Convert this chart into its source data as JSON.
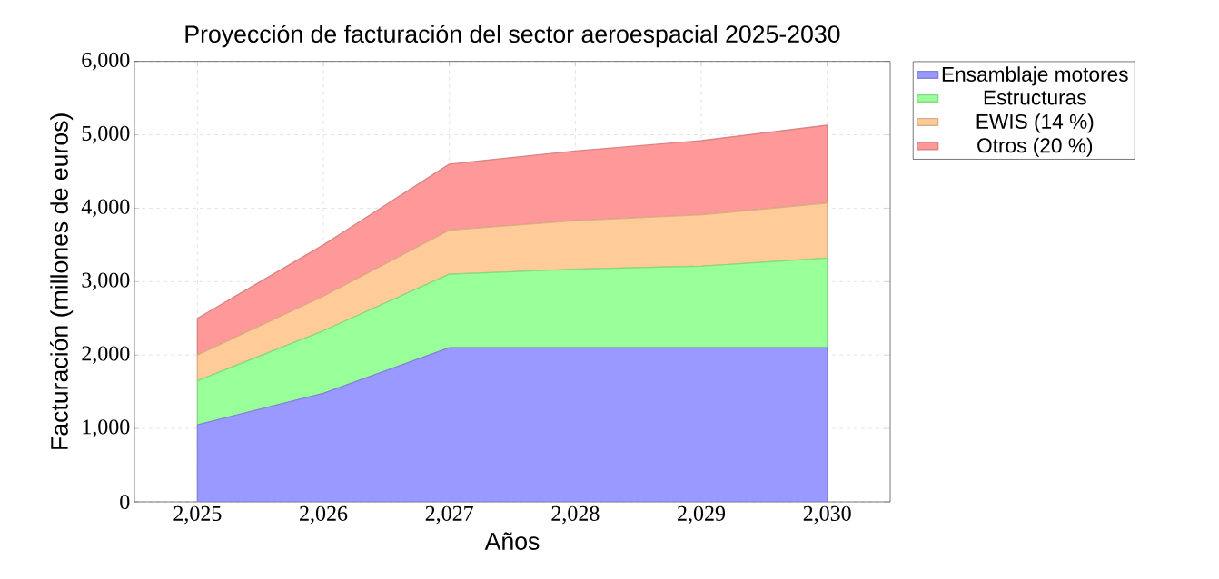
{
  "chart_data": {
    "type": "area",
    "stacked": true,
    "title": "Proyección de facturación del sector aeroespacial 2025-2030",
    "xlabel": "Años",
    "ylabel": "Facturación (millones de euros)",
    "x": [
      2025,
      2026,
      2027,
      2028,
      2029,
      2030
    ],
    "xlim": [
      2024.5,
      2030.5
    ],
    "ylim": [
      0,
      6000
    ],
    "xticks": [
      {
        "value": 2025,
        "label": "2,025"
      },
      {
        "value": 2026,
        "label": "2,026"
      },
      {
        "value": 2027,
        "label": "2,027"
      },
      {
        "value": 2028,
        "label": "2,028"
      },
      {
        "value": 2029,
        "label": "2,029"
      },
      {
        "value": 2030,
        "label": "2,030"
      }
    ],
    "yticks": [
      0,
      {
        "value": 1000,
        "label": "1,000"
      },
      {
        "value": 2000,
        "label": "2,000"
      },
      {
        "value": 3000,
        "label": "3,000"
      },
      {
        "value": 4000,
        "label": "4,000"
      },
      {
        "value": 5000,
        "label": "5,000"
      },
      {
        "value": 6000,
        "label": "6,000"
      }
    ],
    "grid": true,
    "legend": "top right",
    "series": [
      {
        "name": "Ensamblaje motores",
        "color": "#9999ff",
        "values": [
          1050,
          1480,
          2100,
          2100,
          2100,
          2100
        ]
      },
      {
        "name": "Estructuras",
        "color": "#99ff99",
        "values": [
          600,
          850,
          1000,
          1070,
          1110,
          1220
        ]
      },
      {
        "name": "EWIS (14 %)",
        "color": "#ffcc99",
        "values": [
          350,
          470,
          600,
          660,
          700,
          750
        ]
      },
      {
        "name": "Otros (20 %)",
        "color": "#ff9999",
        "values": [
          500,
          700,
          900,
          950,
          1010,
          1060
        ]
      }
    ]
  }
}
